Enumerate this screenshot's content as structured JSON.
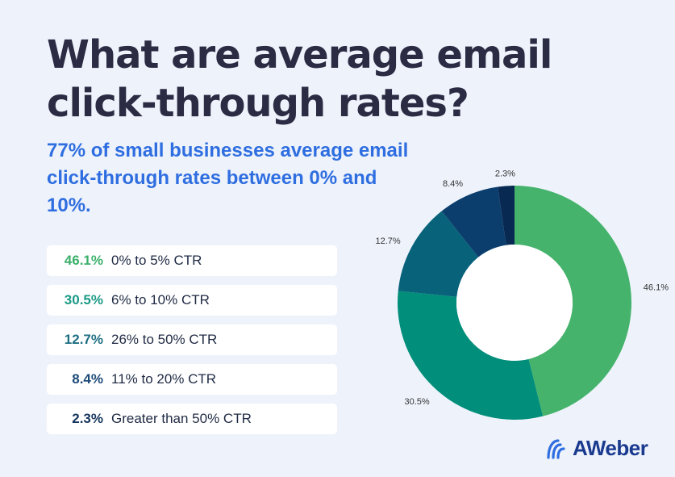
{
  "title": "What are average email click-through rates?",
  "subtitle": "77% of small businesses average email click-through rates between 0% and 10%.",
  "legend": [
    {
      "pct": "46.1%",
      "label": "0% to 5% CTR",
      "color": "#3cb06a"
    },
    {
      "pct": "30.5%",
      "label": "6% to 10% CTR",
      "color": "#1c9a86"
    },
    {
      "pct": "12.7%",
      "label": "26% to 50% CTR",
      "color": "#1e6f82"
    },
    {
      "pct": "8.4%",
      "label": "11% to 20% CTR",
      "color": "#1d4a78"
    },
    {
      "pct": "2.3%",
      "label": "Greater than 50% CTR",
      "color": "#15355c"
    }
  ],
  "chart_data": {
    "type": "pie",
    "donut": true,
    "slices": [
      {
        "value": 46.1,
        "label": "46.1%",
        "color": "#45b36b"
      },
      {
        "value": 30.5,
        "label": "30.5%",
        "color": "#018e7a"
      },
      {
        "value": 12.7,
        "label": "12.7%",
        "color": "#07627a"
      },
      {
        "value": 8.4,
        "label": "8.4%",
        "color": "#0c3e6d"
      },
      {
        "value": 2.3,
        "label": "2.3%",
        "color": "#082a52"
      }
    ]
  },
  "brand": {
    "name": "AWeber",
    "color": "#1a3a8f",
    "icon": "aweber-wave-logo-icon"
  }
}
